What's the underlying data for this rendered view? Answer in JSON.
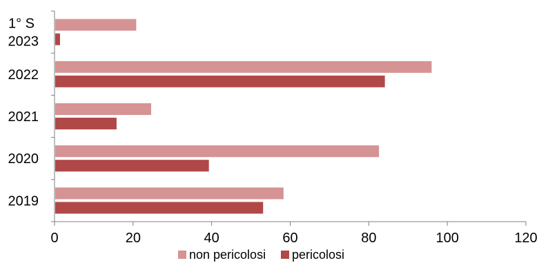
{
  "chart_data": {
    "type": "bar",
    "orientation": "horizontal",
    "categories": [
      "2019",
      "2020",
      "2021",
      "2022",
      "1° S 2023"
    ],
    "category_lines": [
      [
        "2019"
      ],
      [
        "2020"
      ],
      [
        "2021"
      ],
      [
        "2022"
      ],
      [
        "1° S",
        "2023"
      ]
    ],
    "series": [
      {
        "name": "non pericolosi",
        "color": "#d59393",
        "values": [
          58.3,
          82.6,
          24.6,
          96.0,
          20.8
        ]
      },
      {
        "name": "pericolosi",
        "color": "#b04848",
        "values": [
          53.1,
          39.3,
          15.8,
          84.1,
          1.4
        ]
      }
    ],
    "xlim": [
      0,
      120
    ],
    "xticks": [
      0,
      20,
      40,
      60,
      80,
      100,
      120
    ],
    "grid": false,
    "legend": "bottom"
  }
}
